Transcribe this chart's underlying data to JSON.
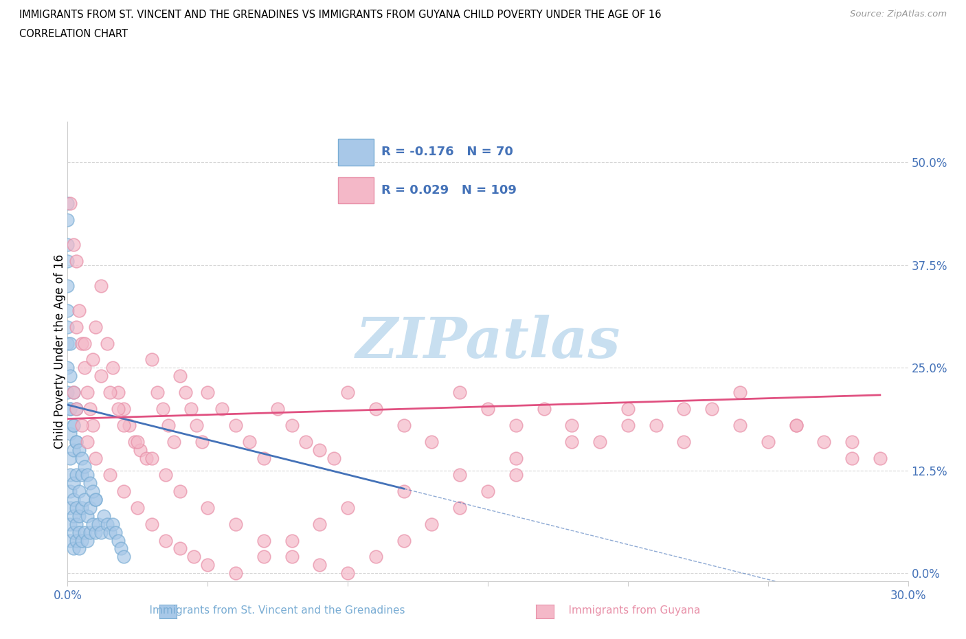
{
  "title_line1": "IMMIGRANTS FROM ST. VINCENT AND THE GRENADINES VS IMMIGRANTS FROM GUYANA CHILD POVERTY UNDER THE AGE OF 16",
  "title_line2": "CORRELATION CHART",
  "source_text": "Source: ZipAtlas.com",
  "xlabel": "Immigrants from St. Vincent and the Grenadines",
  "xlabel2": "Immigrants from Guyana",
  "ylabel": "Child Poverty Under the Age of 16",
  "xlim": [
    0.0,
    0.3
  ],
  "ylim": [
    -0.01,
    0.55
  ],
  "yticks": [
    0.0,
    0.125,
    0.25,
    0.375,
    0.5
  ],
  "ytick_labels": [
    "0.0%",
    "12.5%",
    "25.0%",
    "37.5%",
    "50.0%"
  ],
  "xtick_labels_left": "0.0%",
  "xtick_labels_right": "30.0%",
  "grid_color": "#cccccc",
  "background_color": "#ffffff",
  "blue_color": "#a8c8e8",
  "pink_color": "#f4b8c8",
  "blue_edge_color": "#7aadd4",
  "pink_edge_color": "#e890a8",
  "blue_line_color": "#4472b8",
  "pink_line_color": "#e05080",
  "axis_color": "#cccccc",
  "tick_color": "#4472b8",
  "R_blue": -0.176,
  "N_blue": 70,
  "R_pink": 0.029,
  "N_pink": 109,
  "watermark_color": "#c8dff0",
  "blue_scatter_x": [
    0.001,
    0.001,
    0.001,
    0.001,
    0.001,
    0.001,
    0.001,
    0.001,
    0.002,
    0.002,
    0.002,
    0.002,
    0.002,
    0.002,
    0.002,
    0.003,
    0.003,
    0.003,
    0.003,
    0.003,
    0.004,
    0.004,
    0.004,
    0.004,
    0.005,
    0.005,
    0.005,
    0.006,
    0.006,
    0.007,
    0.007,
    0.008,
    0.008,
    0.009,
    0.01,
    0.01,
    0.011,
    0.012,
    0.013,
    0.014,
    0.015,
    0.016,
    0.017,
    0.018,
    0.019,
    0.02,
    0.0,
    0.0,
    0.0,
    0.0,
    0.0,
    0.0,
    0.0,
    0.0,
    0.0,
    0.0,
    0.001,
    0.001,
    0.001,
    0.002,
    0.002,
    0.003,
    0.003,
    0.004,
    0.005,
    0.006,
    0.007,
    0.008,
    0.009,
    0.01
  ],
  "blue_scatter_y": [
    0.04,
    0.06,
    0.08,
    0.1,
    0.12,
    0.14,
    0.17,
    0.2,
    0.03,
    0.05,
    0.07,
    0.09,
    0.11,
    0.15,
    0.18,
    0.04,
    0.06,
    0.08,
    0.12,
    0.16,
    0.03,
    0.05,
    0.07,
    0.1,
    0.04,
    0.08,
    0.12,
    0.05,
    0.09,
    0.04,
    0.07,
    0.05,
    0.08,
    0.06,
    0.05,
    0.09,
    0.06,
    0.05,
    0.07,
    0.06,
    0.05,
    0.06,
    0.05,
    0.04,
    0.03,
    0.02,
    0.22,
    0.25,
    0.28,
    0.3,
    0.32,
    0.35,
    0.38,
    0.4,
    0.43,
    0.45,
    0.2,
    0.24,
    0.28,
    0.18,
    0.22,
    0.16,
    0.2,
    0.15,
    0.14,
    0.13,
    0.12,
    0.11,
    0.1,
    0.09
  ],
  "pink_scatter_x": [
    0.001,
    0.002,
    0.003,
    0.004,
    0.005,
    0.006,
    0.007,
    0.008,
    0.009,
    0.01,
    0.012,
    0.014,
    0.016,
    0.018,
    0.02,
    0.022,
    0.024,
    0.026,
    0.028,
    0.03,
    0.032,
    0.034,
    0.036,
    0.038,
    0.04,
    0.042,
    0.044,
    0.046,
    0.048,
    0.05,
    0.055,
    0.06,
    0.065,
    0.07,
    0.075,
    0.08,
    0.085,
    0.09,
    0.095,
    0.1,
    0.11,
    0.12,
    0.13,
    0.14,
    0.15,
    0.16,
    0.17,
    0.18,
    0.19,
    0.2,
    0.21,
    0.22,
    0.23,
    0.24,
    0.25,
    0.26,
    0.27,
    0.28,
    0.29,
    0.002,
    0.003,
    0.005,
    0.007,
    0.01,
    0.015,
    0.02,
    0.025,
    0.03,
    0.035,
    0.04,
    0.045,
    0.05,
    0.06,
    0.07,
    0.08,
    0.09,
    0.1,
    0.12,
    0.14,
    0.16,
    0.18,
    0.2,
    0.22,
    0.24,
    0.26,
    0.28,
    0.003,
    0.006,
    0.009,
    0.012,
    0.015,
    0.018,
    0.02,
    0.025,
    0.03,
    0.035,
    0.04,
    0.05,
    0.06,
    0.07,
    0.08,
    0.09,
    0.1,
    0.11,
    0.12,
    0.13,
    0.14,
    0.15,
    0.16
  ],
  "pink_scatter_y": [
    0.45,
    0.4,
    0.38,
    0.32,
    0.28,
    0.25,
    0.22,
    0.2,
    0.18,
    0.3,
    0.35,
    0.28,
    0.25,
    0.22,
    0.2,
    0.18,
    0.16,
    0.15,
    0.14,
    0.26,
    0.22,
    0.2,
    0.18,
    0.16,
    0.24,
    0.22,
    0.2,
    0.18,
    0.16,
    0.22,
    0.2,
    0.18,
    0.16,
    0.14,
    0.2,
    0.18,
    0.16,
    0.15,
    0.14,
    0.22,
    0.2,
    0.18,
    0.16,
    0.22,
    0.2,
    0.18,
    0.2,
    0.18,
    0.16,
    0.2,
    0.18,
    0.16,
    0.2,
    0.18,
    0.16,
    0.18,
    0.16,
    0.14,
    0.14,
    0.22,
    0.2,
    0.18,
    0.16,
    0.14,
    0.12,
    0.1,
    0.08,
    0.06,
    0.04,
    0.03,
    0.02,
    0.01,
    0.0,
    0.02,
    0.04,
    0.06,
    0.08,
    0.1,
    0.12,
    0.14,
    0.16,
    0.18,
    0.2,
    0.22,
    0.18,
    0.16,
    0.3,
    0.28,
    0.26,
    0.24,
    0.22,
    0.2,
    0.18,
    0.16,
    0.14,
    0.12,
    0.1,
    0.08,
    0.06,
    0.04,
    0.02,
    0.01,
    0.0,
    0.02,
    0.04,
    0.06,
    0.08,
    0.1,
    0.12
  ]
}
